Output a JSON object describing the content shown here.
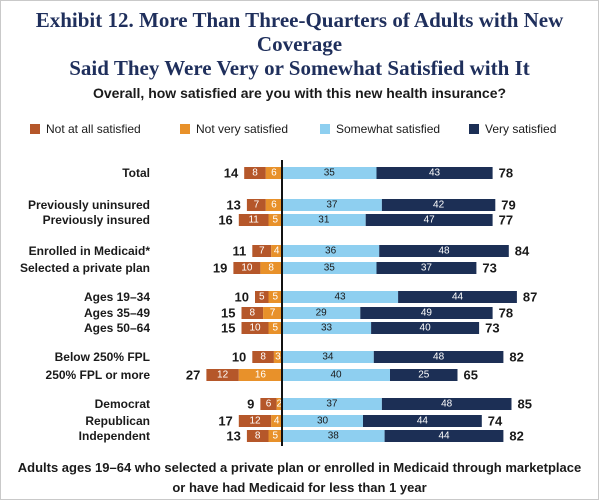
{
  "title_line1": "Exhibit 12. More Than Three-Quarters of Adults with New Coverage",
  "title_line2": "Said They Were Very or Somewhat Satisfied with It",
  "question": "Overall, how satisfied are you with this new health insurance?",
  "footer_line1": "Adults ages 19–64 who selected a private plan or enrolled in Medicaid through marketplace",
  "footer_line2": "or have had Medicaid for less than 1 year",
  "legend": [
    {
      "label": "Not at all satisfied",
      "color": "#b5572a"
    },
    {
      "label": "Not very satisfied",
      "color": "#e8912a"
    },
    {
      "label": "Somewhat satisfied",
      "color": "#8ecff0"
    },
    {
      "label": "Very satisfied",
      "color": "#1c2f55"
    }
  ],
  "chart_data": {
    "type": "bar",
    "orientation": "horizontal-diverging",
    "series": [
      {
        "name": "Not at all satisfied",
        "color": "#b5572a"
      },
      {
        "name": "Not very satisfied",
        "color": "#e8912a"
      },
      {
        "name": "Somewhat satisfied",
        "color": "#8ecff0"
      },
      {
        "name": "Very satisfied",
        "color": "#1c2f55"
      }
    ],
    "rows": [
      {
        "label": "Total",
        "not_at_all": 8,
        "not_very": 6,
        "somewhat": 35,
        "very": 43,
        "neg_total": 14,
        "pos_total": 78
      },
      {
        "label": "Previously uninsured",
        "not_at_all": 7,
        "not_very": 6,
        "somewhat": 37,
        "very": 42,
        "neg_total": 13,
        "pos_total": 79
      },
      {
        "label": "Previously insured",
        "not_at_all": 11,
        "not_very": 5,
        "somewhat": 31,
        "very": 47,
        "neg_total": 16,
        "pos_total": 77
      },
      {
        "label": "Enrolled in Medicaid*",
        "not_at_all": 7,
        "not_very": 4,
        "somewhat": 36,
        "very": 48,
        "neg_total": 11,
        "pos_total": 84
      },
      {
        "label": "Selected a private plan",
        "not_at_all": 10,
        "not_very": 8,
        "somewhat": 35,
        "very": 37,
        "neg_total": 19,
        "pos_total": 73
      },
      {
        "label": "Ages 19–34",
        "not_at_all": 5,
        "not_very": 5,
        "somewhat": 43,
        "very": 44,
        "neg_total": 10,
        "pos_total": 87
      },
      {
        "label": "Ages 35–49",
        "not_at_all": 8,
        "not_very": 7,
        "somewhat": 29,
        "very": 49,
        "neg_total": 15,
        "pos_total": 78
      },
      {
        "label": "Ages 50–64",
        "not_at_all": 10,
        "not_very": 5,
        "somewhat": 33,
        "very": 40,
        "neg_total": 15,
        "pos_total": 73
      },
      {
        "label": "Below 250% FPL",
        "not_at_all": 8,
        "not_very": 3,
        "somewhat": 34,
        "very": 48,
        "neg_total": 10,
        "pos_total": 82
      },
      {
        "label": "250% FPL or more",
        "not_at_all": 12,
        "not_very": 16,
        "somewhat": 40,
        "very": 25,
        "neg_total": 27,
        "pos_total": 65
      },
      {
        "label": "Democrat",
        "not_at_all": 6,
        "not_very": 2,
        "somewhat": 37,
        "very": 48,
        "neg_total": 9,
        "pos_total": 85
      },
      {
        "label": "Republican",
        "not_at_all": 12,
        "not_very": 4,
        "somewhat": 30,
        "very": 44,
        "neg_total": 17,
        "pos_total": 74
      },
      {
        "label": "Independent",
        "not_at_all": 8,
        "not_very": 5,
        "somewhat": 38,
        "very": 44,
        "neg_total": 13,
        "pos_total": 82
      }
    ]
  }
}
